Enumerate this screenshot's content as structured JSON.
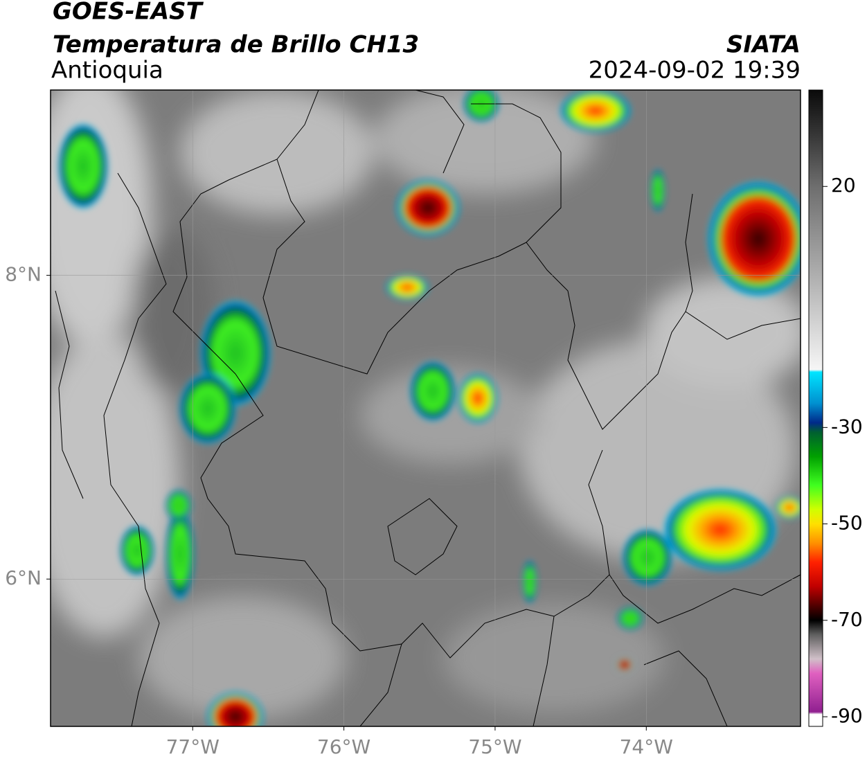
{
  "header": {
    "title": "GOES-EAST",
    "subtitle": "Temperatura de Brillo CH13",
    "region": "Antioquia",
    "source": "SIATA",
    "timestamp": "2024-09-02 19:39"
  },
  "map": {
    "xlim": [
      -77.94,
      -72.98
    ],
    "ylim": [
      5.03,
      9.22
    ],
    "grid": true,
    "xticks": [
      {
        "value": -77,
        "label": "77°W"
      },
      {
        "value": -76,
        "label": "76°W"
      },
      {
        "value": -75,
        "label": "75°W"
      },
      {
        "value": -74,
        "label": "74°W"
      }
    ],
    "yticks": [
      {
        "value": 6,
        "label": "6°N"
      },
      {
        "value": 8,
        "label": "8°N"
      }
    ]
  },
  "colorbar": {
    "lim": [
      -92,
      40
    ],
    "ticks": [
      20,
      -30,
      -50,
      -70,
      -90
    ],
    "colormap": [
      {
        "value": 40,
        "color": "#0a0a0a"
      },
      {
        "value": 30,
        "color": "#3a3a3a"
      },
      {
        "value": 20,
        "color": "#6e6e6e"
      },
      {
        "value": 0,
        "color": "#b4b4b4"
      },
      {
        "value": -18,
        "color": "#f6f6f6"
      },
      {
        "value": -18.5,
        "color": "#00e5ff"
      },
      {
        "value": -25,
        "color": "#0090d0"
      },
      {
        "value": -29,
        "color": "#002a8a"
      },
      {
        "value": -31,
        "color": "#006030"
      },
      {
        "value": -36,
        "color": "#00a000"
      },
      {
        "value": -42,
        "color": "#40ff20"
      },
      {
        "value": -47,
        "color": "#d0ff00"
      },
      {
        "value": -50,
        "color": "#ffe000"
      },
      {
        "value": -54,
        "color": "#ff9000"
      },
      {
        "value": -58,
        "color": "#ff2000"
      },
      {
        "value": -63,
        "color": "#c00000"
      },
      {
        "value": -67,
        "color": "#500000"
      },
      {
        "value": -70,
        "color": "#000000"
      },
      {
        "value": -73,
        "color": "#606060"
      },
      {
        "value": -78,
        "color": "#d0c0c8"
      },
      {
        "value": -81,
        "color": "#e060c0"
      },
      {
        "value": -89,
        "color": "#902090"
      },
      {
        "value": -89.5,
        "color": "#ffffff"
      }
    ]
  }
}
